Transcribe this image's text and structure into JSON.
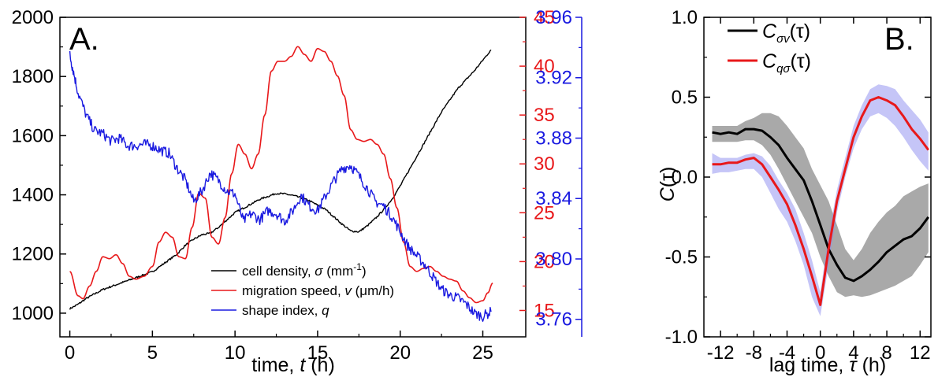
{
  "colors": {
    "axis": "#000000",
    "red": "#e8181a",
    "blue": "#1a1ae0",
    "black": "#000000",
    "gray_band": "#8c8c8c",
    "blue_band": "#8c8cf0"
  },
  "chart_data": [
    {
      "panel": "A.",
      "type": "line",
      "xlabel_text": "time, ",
      "xlabel_var": "t",
      "xlabel_unit": " (h)",
      "xlim": [
        -0.6,
        27.6
      ],
      "x_ticks": [
        0,
        5,
        10,
        15,
        20,
        25
      ],
      "axes": {
        "left": {
          "ylim": [
            920,
            2000
          ],
          "ticks": [
            1000,
            1200,
            1400,
            1600,
            1800,
            2000
          ],
          "color": "#000000"
        },
        "right_red": {
          "ylim": [
            12.3,
            45
          ],
          "ticks": [
            15,
            20,
            25,
            30,
            35,
            40,
            45
          ],
          "color": "#e8181a"
        },
        "right_blue": {
          "ylim": [
            3.7484,
            3.96
          ],
          "ticks": [
            3.76,
            3.8,
            3.84,
            3.88,
            3.92,
            3.96
          ],
          "tick_labels": [
            "3.76",
            "3.80",
            "3.84",
            "3.88",
            "3.92",
            "3.96"
          ],
          "color": "#1a1ae0"
        }
      },
      "legend": [
        {
          "text": "cell density, ",
          "var": "σ",
          "unit": " (mm",
          "sup": "-1",
          "close": ")",
          "color": "#000000"
        },
        {
          "text": "migration speed, ",
          "var": "v",
          "unit": " (μm/h)",
          "color": "#e8181a"
        },
        {
          "text": "shape index, ",
          "var": "q",
          "color": "#1a1ae0"
        }
      ],
      "series": [
        {
          "axis": "left",
          "color": "#000000",
          "noise": 3,
          "x": [
            0,
            0.5,
            1,
            1.5,
            2,
            2.5,
            3,
            3.5,
            4,
            4.5,
            5,
            5.5,
            6,
            6.5,
            7,
            7.5,
            8,
            8.5,
            9,
            9.5,
            10,
            10.5,
            11,
            11.5,
            12,
            12.5,
            13,
            13.5,
            14,
            14.5,
            15,
            15.5,
            16,
            16.5,
            17,
            17.5,
            18,
            18.5,
            19,
            19.5,
            20,
            20.5,
            21,
            21.5,
            22,
            22.5,
            23,
            23.5,
            24,
            24.5,
            25,
            25.5
          ],
          "y": [
            1015,
            1030,
            1050,
            1065,
            1080,
            1090,
            1100,
            1110,
            1120,
            1130,
            1140,
            1160,
            1180,
            1200,
            1230,
            1250,
            1265,
            1270,
            1290,
            1315,
            1340,
            1355,
            1370,
            1385,
            1395,
            1405,
            1403,
            1398,
            1390,
            1380,
            1365,
            1350,
            1325,
            1300,
            1278,
            1275,
            1295,
            1320,
            1350,
            1385,
            1430,
            1480,
            1530,
            1580,
            1630,
            1680,
            1720,
            1760,
            1790,
            1820,
            1855,
            1890
          ]
        },
        {
          "axis": "right_red",
          "color": "#e8181a",
          "noise": 0,
          "x": [
            0,
            0.5,
            0.8,
            1.2,
            1.6,
            2.0,
            2.4,
            2.8,
            3.2,
            3.6,
            4.0,
            4.5,
            5.0,
            5.4,
            5.8,
            6.2,
            6.6,
            7.0,
            7.4,
            7.8,
            8.2,
            8.6,
            9.0,
            9.4,
            9.8,
            10.2,
            10.6,
            11.0,
            11.4,
            11.8,
            12.2,
            12.6,
            13.0,
            13.4,
            13.8,
            14.2,
            14.6,
            15.0,
            15.4,
            15.8,
            16.2,
            16.6,
            17.0,
            17.4,
            17.8,
            18.2,
            18.6,
            19.0,
            19.4,
            19.8,
            20.2,
            20.6,
            21.0,
            21.4,
            21.8,
            22.2,
            22.6,
            23.0,
            23.4,
            23.8,
            24.2,
            24.6,
            25.0,
            25.3,
            25.6
          ],
          "y": [
            19,
            16.5,
            16.2,
            17.5,
            19,
            20.5,
            20.3,
            20.7,
            19.8,
            18.5,
            18.2,
            18.5,
            19.5,
            22,
            23,
            22.5,
            20.5,
            20.3,
            23.5,
            27,
            26.5,
            22.5,
            21.8,
            24.5,
            29,
            32,
            31,
            29.5,
            31,
            35,
            39.5,
            40.5,
            40.5,
            41,
            42,
            41.2,
            40.5,
            41.8,
            41.5,
            40.5,
            39,
            37,
            33.5,
            32.5,
            32.3,
            32.5,
            32,
            31,
            28.5,
            25.5,
            22,
            19.5,
            19,
            19.3,
            19.5,
            19,
            18.5,
            18.2,
            18,
            17,
            16.3,
            15.8,
            16,
            16.8,
            17.8
          ]
        },
        {
          "axis": "right_blue",
          "color": "#1a1ae0",
          "noise": 0.0035,
          "x": [
            0,
            0.2,
            0.5,
            1.0,
            1.5,
            2.0,
            2.5,
            3.0,
            3.5,
            4.0,
            4.5,
            5.0,
            5.5,
            6.0,
            6.5,
            7.0,
            7.5,
            8.0,
            8.5,
            9.0,
            9.5,
            10.0,
            10.5,
            11.0,
            11.5,
            12.0,
            12.5,
            13.0,
            13.5,
            14.0,
            14.5,
            15.0,
            15.5,
            16.0,
            16.5,
            17.0,
            17.5,
            18.0,
            18.5,
            19.0,
            19.5,
            20.0,
            20.5,
            21.0,
            21.5,
            22.0,
            22.5,
            23.0,
            23.5,
            24.0,
            24.5,
            25.0,
            25.5
          ],
          "y": [
            3.935,
            3.925,
            3.91,
            3.895,
            3.885,
            3.883,
            3.878,
            3.88,
            3.875,
            3.875,
            3.876,
            3.875,
            3.872,
            3.87,
            3.86,
            3.852,
            3.838,
            3.845,
            3.857,
            3.852,
            3.845,
            3.843,
            3.825,
            3.83,
            3.826,
            3.832,
            3.83,
            3.825,
            3.832,
            3.842,
            3.835,
            3.832,
            3.842,
            3.852,
            3.86,
            3.862,
            3.855,
            3.847,
            3.838,
            3.835,
            3.828,
            3.818,
            3.808,
            3.802,
            3.796,
            3.788,
            3.78,
            3.776,
            3.774,
            3.77,
            3.764,
            3.762,
            3.765
          ]
        }
      ]
    },
    {
      "panel": "B.",
      "type": "line",
      "xlabel_text": "lag time, ",
      "xlabel_var": "τ",
      "xlabel_unit": " (h)",
      "ylabel_var": "C",
      "ylabel_arg": "(τ)",
      "xlim": [
        -14,
        13.3
      ],
      "ylim": [
        -1.0,
        1.0
      ],
      "x_ticks": [
        -12,
        -8,
        -4,
        0,
        4,
        8,
        12
      ],
      "y_ticks": [
        -1.0,
        -0.5,
        0.0,
        0.5,
        1.0
      ],
      "y_tick_labels": [
        "-1.0",
        "-0.5",
        "0.0",
        "0.5",
        "1.0"
      ],
      "legend": [
        {
          "var": "C",
          "sub": "σv",
          "arg": "(τ)",
          "color": "#000000"
        },
        {
          "var": "C",
          "sub": "qσ",
          "arg": "(τ)",
          "color": "#e8181a"
        }
      ],
      "series": [
        {
          "color": "#000000",
          "band_color": "#8c8c8c",
          "x": [
            -13,
            -12,
            -11,
            -10,
            -9,
            -8,
            -7,
            -6,
            -5,
            -4,
            -3,
            -2,
            -1,
            0,
            1,
            2,
            3,
            4,
            5,
            6,
            7,
            8,
            9,
            10,
            11,
            12,
            13
          ],
          "y": [
            0.28,
            0.27,
            0.28,
            0.27,
            0.3,
            0.3,
            0.29,
            0.25,
            0.2,
            0.12,
            0.05,
            -0.02,
            -0.15,
            -0.3,
            -0.45,
            -0.55,
            -0.63,
            -0.65,
            -0.62,
            -0.58,
            -0.53,
            -0.47,
            -0.43,
            -0.39,
            -0.37,
            -0.32,
            -0.25
          ],
          "lo": [
            0.22,
            0.22,
            0.22,
            0.22,
            0.23,
            0.23,
            0.2,
            0.14,
            0.05,
            -0.05,
            -0.15,
            -0.25,
            -0.35,
            -0.5,
            -0.62,
            -0.72,
            -0.75,
            -0.74,
            -0.75,
            -0.74,
            -0.72,
            -0.7,
            -0.68,
            -0.65,
            -0.62,
            -0.55,
            -0.47
          ],
          "hi": [
            0.32,
            0.32,
            0.32,
            0.32,
            0.35,
            0.37,
            0.4,
            0.4,
            0.38,
            0.32,
            0.25,
            0.18,
            0.05,
            -0.05,
            -0.15,
            -0.3,
            -0.45,
            -0.52,
            -0.45,
            -0.35,
            -0.28,
            -0.22,
            -0.18,
            -0.12,
            -0.09,
            -0.06,
            -0.04
          ]
        },
        {
          "color": "#e8181a",
          "band_color": "#8c8cf0",
          "x": [
            -13,
            -12,
            -11,
            -10,
            -9,
            -8,
            -7,
            -6,
            -5,
            -4,
            -3,
            -2,
            -1,
            0,
            1,
            2,
            3,
            4,
            5,
            6,
            7,
            8,
            9,
            10,
            11,
            12,
            13
          ],
          "y": [
            0.08,
            0.08,
            0.09,
            0.09,
            0.11,
            0.12,
            0.08,
            0.0,
            -0.08,
            -0.17,
            -0.3,
            -0.45,
            -0.62,
            -0.8,
            -0.45,
            -0.15,
            0.05,
            0.25,
            0.38,
            0.48,
            0.5,
            0.48,
            0.45,
            0.38,
            0.3,
            0.24,
            0.17
          ],
          "lo": [
            0.02,
            0.03,
            0.03,
            0.04,
            0.05,
            0.05,
            0.0,
            -0.1,
            -0.2,
            -0.28,
            -0.4,
            -0.55,
            -0.75,
            -0.87,
            -0.55,
            -0.22,
            0.0,
            0.18,
            0.3,
            0.38,
            0.4,
            0.37,
            0.32,
            0.25,
            0.17,
            0.1,
            0.04
          ],
          "hi": [
            0.15,
            0.12,
            0.12,
            0.12,
            0.14,
            0.15,
            0.13,
            0.07,
            -0.02,
            -0.1,
            -0.2,
            -0.35,
            -0.52,
            -0.72,
            -0.37,
            -0.08,
            0.12,
            0.32,
            0.45,
            0.55,
            0.58,
            0.57,
            0.55,
            0.48,
            0.42,
            0.36,
            0.28
          ]
        }
      ]
    }
  ]
}
